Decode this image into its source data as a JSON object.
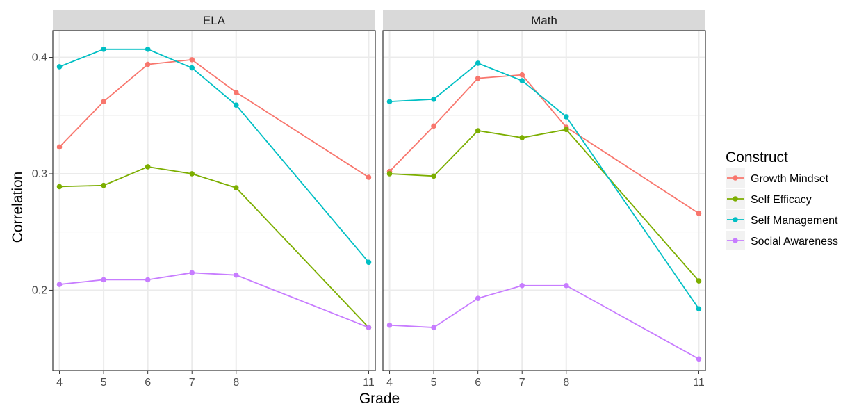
{
  "chart_data": {
    "type": "line",
    "xlabel": "Grade",
    "ylabel": "Correlation",
    "x_ticks": [
      4,
      5,
      6,
      7,
      8,
      11
    ],
    "y_ticks": [
      0.2,
      0.3,
      0.4
    ],
    "y_tick_labels": [
      "0.2",
      "0.3",
      "0.4"
    ],
    "xlim": [
      3.85,
      11.15
    ],
    "ylim": [
      0.131,
      0.423
    ],
    "grid": true,
    "legend": {
      "title": "Construct",
      "position": "right"
    },
    "series": [
      {
        "name": "Growth Mindset",
        "color": "#F8766D"
      },
      {
        "name": "Self Efficacy",
        "color": "#7CAE00"
      },
      {
        "name": "Self Management",
        "color": "#00BFC4"
      },
      {
        "name": "Social Awareness",
        "color": "#C77CFF"
      }
    ],
    "panels": [
      {
        "title": "ELA",
        "x": [
          4,
          5,
          6,
          7,
          8,
          11
        ],
        "values": {
          "Growth Mindset": [
            0.323,
            0.362,
            0.394,
            0.398,
            0.37,
            0.297
          ],
          "Self Efficacy": [
            0.289,
            0.29,
            0.306,
            0.3,
            0.288,
            0.168
          ],
          "Self Management": [
            0.392,
            0.407,
            0.407,
            0.391,
            0.359,
            0.224
          ],
          "Social Awareness": [
            0.205,
            0.209,
            0.209,
            0.215,
            0.213,
            0.168
          ]
        }
      },
      {
        "title": "Math",
        "x": [
          4,
          5,
          6,
          7,
          8,
          11
        ],
        "values": {
          "Growth Mindset": [
            0.302,
            0.341,
            0.382,
            0.385,
            0.34,
            0.266
          ],
          "Self Efficacy": [
            0.3,
            0.298,
            0.337,
            0.331,
            0.338,
            0.208
          ],
          "Self Management": [
            0.362,
            0.364,
            0.395,
            0.38,
            0.349,
            0.184
          ],
          "Social Awareness": [
            0.17,
            0.168,
            0.193,
            0.204,
            0.204,
            0.141
          ]
        }
      }
    ]
  }
}
